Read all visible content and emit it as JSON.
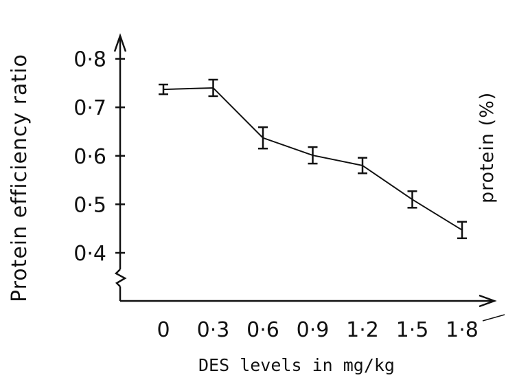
{
  "chart_data": {
    "type": "line",
    "xlabel": "DES levels in mg/kg",
    "ylabel": "Protein efficiency ratio",
    "right_partial_label": "protein (%)",
    "categories": [
      "0",
      "0·3",
      "0·6",
      "0·9",
      "1·2",
      "1·5",
      "1·8"
    ],
    "x": [
      0,
      0.3,
      0.6,
      0.9,
      1.2,
      1.5,
      1.8
    ],
    "series": [
      {
        "values": [
          0.737,
          0.74,
          0.637,
          0.601,
          0.58,
          0.51,
          0.447
        ],
        "error": [
          0.01,
          0.017,
          0.022,
          0.017,
          0.016,
          0.017,
          0.017
        ]
      }
    ],
    "yticks": [
      "0·4",
      "0·5",
      "0·6",
      "0·7",
      "0·8"
    ],
    "ytick_values": [
      0.4,
      0.5,
      0.6,
      0.7,
      0.8
    ],
    "ylim": [
      0.4,
      0.8
    ],
    "y_axis_break": true,
    "grid": false
  }
}
